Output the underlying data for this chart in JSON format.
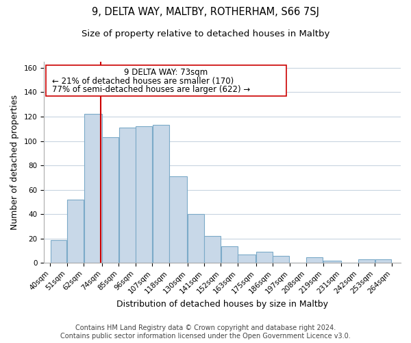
{
  "title": "9, DELTA WAY, MALTBY, ROTHERHAM, S66 7SJ",
  "subtitle": "Size of property relative to detached houses in Maltby",
  "xlabel": "Distribution of detached houses by size in Maltby",
  "ylabel": "Number of detached properties",
  "bar_left_edges": [
    40,
    51,
    62,
    74,
    85,
    96,
    107,
    118,
    130,
    141,
    152,
    163,
    175,
    186,
    197,
    208,
    219,
    231,
    242,
    253
  ],
  "bar_heights": [
    19,
    52,
    122,
    103,
    111,
    112,
    113,
    71,
    40,
    22,
    14,
    7,
    9,
    6,
    0,
    5,
    2,
    0,
    3,
    3
  ],
  "bar_widths": [
    11,
    11,
    12,
    11,
    11,
    11,
    11,
    12,
    11,
    11,
    11,
    12,
    11,
    11,
    11,
    11,
    12,
    11,
    11,
    11
  ],
  "tick_labels": [
    "40sqm",
    "51sqm",
    "62sqm",
    "74sqm",
    "85sqm",
    "96sqm",
    "107sqm",
    "118sqm",
    "130sqm",
    "141sqm",
    "152sqm",
    "163sqm",
    "175sqm",
    "186sqm",
    "197sqm",
    "208sqm",
    "219sqm",
    "231sqm",
    "242sqm",
    "253sqm",
    "264sqm"
  ],
  "tick_positions": [
    40,
    51,
    62,
    74,
    85,
    96,
    107,
    118,
    130,
    141,
    152,
    163,
    175,
    186,
    197,
    208,
    219,
    231,
    242,
    253,
    264
  ],
  "bar_color": "#c8d8e8",
  "bar_edge_color": "#7baac8",
  "vline_x": 73,
  "vline_color": "#cc0000",
  "annotation_line1": "9 DELTA WAY: 73sqm",
  "annotation_line2": "← 21% of detached houses are smaller (170)",
  "annotation_line3": "77% of semi-detached houses are larger (622) →",
  "ylim": [
    0,
    165
  ],
  "xlim": [
    36,
    270
  ],
  "yticks": [
    0,
    20,
    40,
    60,
    80,
    100,
    120,
    140,
    160
  ],
  "background_color": "#ffffff",
  "grid_color": "#c8d4e0",
  "footer_text": "Contains HM Land Registry data © Crown copyright and database right 2024.\nContains public sector information licensed under the Open Government Licence v3.0.",
  "title_fontsize": 10.5,
  "subtitle_fontsize": 9.5,
  "axis_label_fontsize": 9,
  "tick_fontsize": 7.5,
  "annotation_fontsize": 8.5,
  "footer_fontsize": 7
}
